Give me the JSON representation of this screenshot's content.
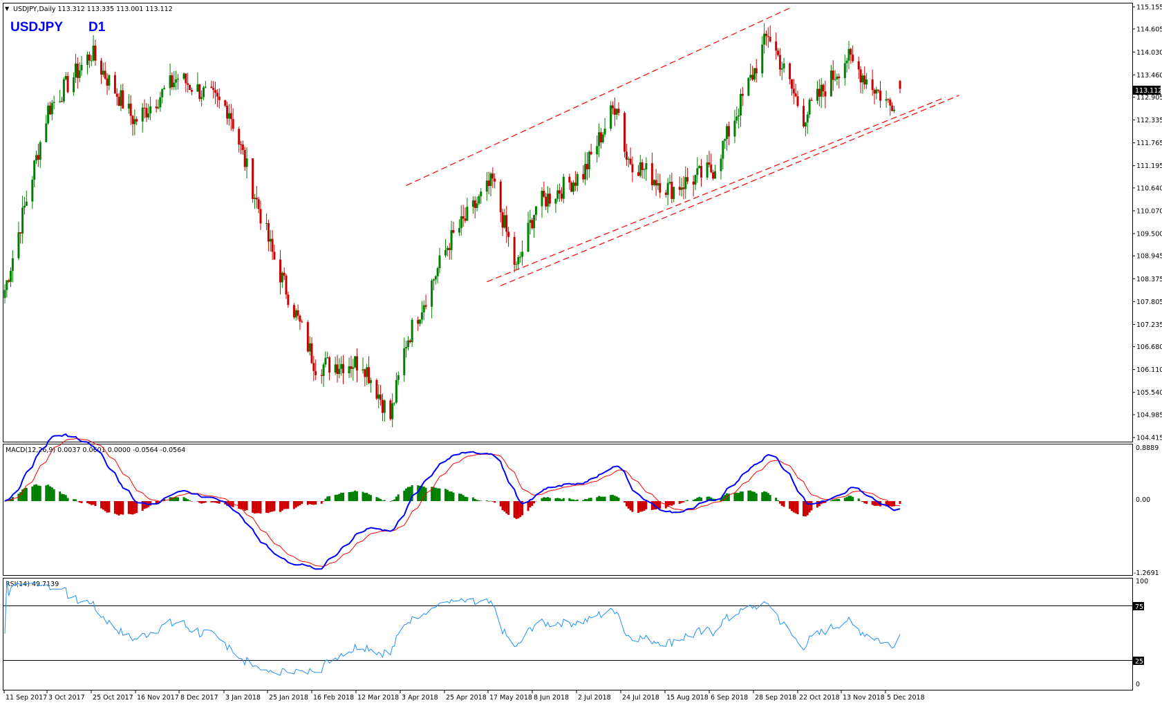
{
  "header": {
    "menu_glyph": "▼",
    "info": "USDJPY,Daily  113.312 113.335 113.001 113.112"
  },
  "overlay_title": {
    "symbol": "USDJPY",
    "timeframe": "D1"
  },
  "price_axis": {
    "ticks": [
      "115.155",
      "114.605",
      "114.030",
      "113.460",
      "112.905",
      "112.335",
      "111.765",
      "111.195",
      "110.640",
      "110.070",
      "109.500",
      "108.945",
      "108.375",
      "107.805",
      "107.235",
      "106.680",
      "106.110",
      "105.540",
      "104.985",
      "104.415"
    ],
    "current_price": "113.112"
  },
  "macd_panel": {
    "label": "MACD(12,26,9) 0.0037 0.0601 0.0000 -0.0564 -0.0564",
    "ticks": [
      "0.8889",
      "0.00",
      "-1.2691"
    ]
  },
  "rsi_panel": {
    "label": "RSI(14) 49.7139",
    "ticks": [
      "100",
      "75",
      "25",
      "0"
    ]
  },
  "date_axis": {
    "labels": [
      "11 Sep 2017",
      "3 Oct 2017",
      "25 Oct 2017",
      "16 Nov 2017",
      "8 Dec 2017",
      "3 Jan 2018",
      "25 Jan 2018",
      "16 Feb 2018",
      "12 Mar 2018",
      "3 Apr 2018",
      "25 Apr 2018",
      "17 May 2018",
      "8 Jun 2018",
      "2 Jul 2018",
      "24 Jul 2018",
      "15 Aug 2018",
      "6 Sep 2018",
      "28 Sep 2018",
      "22 Oct 2018",
      "13 Nov 2018",
      "5 Dec 2018"
    ]
  },
  "colors": {
    "bull": "#008000",
    "bear": "#cc0000",
    "trend": "#ff0000",
    "macd_line": "#0000ff",
    "signal_line": "#ff0000",
    "rsi_line": "#1e90ff"
  },
  "chart_data": {
    "type": "candlestick",
    "symbol": "USDJPY",
    "timeframe": "Daily",
    "last_bar": {
      "open": 113.312,
      "high": 113.335,
      "low": 113.001,
      "close": 113.112
    },
    "ylim": [
      104.415,
      115.155
    ],
    "x_dates": [
      "11 Sep 2017",
      "3 Oct 2017",
      "25 Oct 2017",
      "16 Nov 2017",
      "8 Dec 2017",
      "3 Jan 2018",
      "25 Jan 2018",
      "16 Feb 2018",
      "12 Mar 2018",
      "3 Apr 2018",
      "25 Apr 2018",
      "17 May 2018",
      "8 Jun 2018",
      "2 Jul 2018",
      "24 Jul 2018",
      "15 Aug 2018",
      "6 Sep 2018",
      "28 Sep 2018",
      "22 Oct 2018",
      "13 Nov 2018",
      "5 Dec 2018"
    ],
    "close_path": [
      {
        "date": "11 Sep 2017",
        "close": 108.1
      },
      {
        "date": "3 Oct 2017",
        "close": 112.6
      },
      {
        "date": "25 Oct 2017",
        "close": 114.0
      },
      {
        "date": "16 Nov 2017",
        "close": 112.3
      },
      {
        "date": "8 Dec 2017",
        "close": 113.4
      },
      {
        "date": "3 Jan 2018",
        "close": 112.6
      },
      {
        "date": "25 Jan 2018",
        "close": 109.0
      },
      {
        "date": "16 Feb 2018",
        "close": 106.2
      },
      {
        "date": "12 Mar 2018",
        "close": 106.3
      },
      {
        "date": "26 Mar 2018",
        "close": 104.9
      },
      {
        "date": "3 Apr 2018",
        "close": 106.8
      },
      {
        "date": "25 Apr 2018",
        "close": 109.3
      },
      {
        "date": "17 May 2018",
        "close": 110.8
      },
      {
        "date": "29 May 2018",
        "close": 108.6
      },
      {
        "date": "8 Jun 2018",
        "close": 110.2
      },
      {
        "date": "2 Jul 2018",
        "close": 111.0
      },
      {
        "date": "19 Jul 2018",
        "close": 112.8
      },
      {
        "date": "24 Jul 2018",
        "close": 111.4
      },
      {
        "date": "15 Aug 2018",
        "close": 110.6
      },
      {
        "date": "6 Sep 2018",
        "close": 111.1
      },
      {
        "date": "28 Sep 2018",
        "close": 113.7
      },
      {
        "date": "4 Oct 2018",
        "close": 114.5
      },
      {
        "date": "22 Oct 2018",
        "close": 112.4
      },
      {
        "date": "13 Nov 2018",
        "close": 113.9
      },
      {
        "date": "5 Dec 2018",
        "close": 112.7
      },
      {
        "date": "10 Dec 2018",
        "close": 113.112
      }
    ],
    "macd": {
      "params": "12,26,9",
      "values": {
        "macd": 0.0037,
        "signal": 0.0601,
        "histogram": -0.0564
      },
      "ylim": [
        -1.2691,
        0.8889
      ]
    },
    "rsi": {
      "period": 14,
      "value": 49.7139,
      "levels": [
        25,
        75
      ],
      "ylim": [
        0,
        100
      ]
    }
  }
}
